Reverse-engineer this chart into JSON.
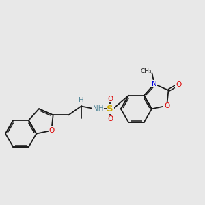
{
  "background_color": "#e8e8e8",
  "bond_color": "#1a1a1a",
  "bond_width": 1.3,
  "figsize": [
    3.0,
    3.0
  ],
  "dpi": 100,
  "colors": {
    "O": "#dd0000",
    "N": "#0000dd",
    "S": "#ccaa00",
    "H": "#558899",
    "C": "#1a1a1a"
  }
}
